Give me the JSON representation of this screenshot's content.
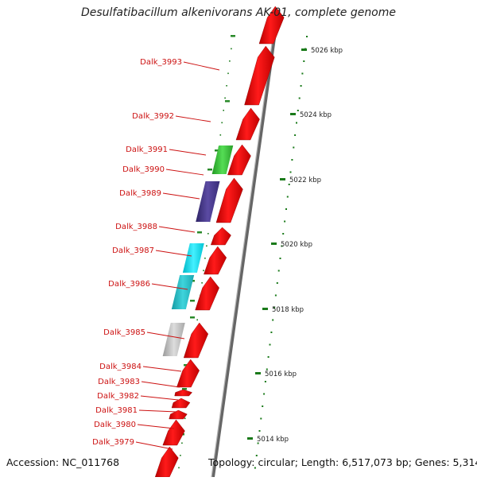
{
  "title": "Desulfatibacillum alkenivorans AK-01, complete genome",
  "accession": "Accession: NC_011768",
  "summary": "Topology: circular; Length: 6,517,073 bp; Genes: 5,314",
  "colors": {
    "label": "#cc1111",
    "forward": "#ee0000",
    "green": "#33cc33",
    "purple": "#4c3d8f",
    "cyan": "#00d8e8",
    "teal": "#22bcc4",
    "gray": "#bdbdbd",
    "tick": "#1a7a1a",
    "backbone": "#888888"
  },
  "scale_labels": [
    "5026 kbp",
    "5024 kbp",
    "5022 kbp",
    "5020 kbp",
    "5018 kbp",
    "5016 kbp",
    "5014 kbp"
  ],
  "gene_labels": [
    "Dalk_3993",
    "Dalk_3992",
    "Dalk_3991",
    "Dalk_3990",
    "Dalk_3989",
    "Dalk_3988",
    "Dalk_3987",
    "Dalk_3986",
    "Dalk_3985",
    "Dalk_3984",
    "Dalk_3983",
    "Dalk_3982",
    "Dalk_3981",
    "Dalk_3980",
    "Dalk_3979"
  ]
}
